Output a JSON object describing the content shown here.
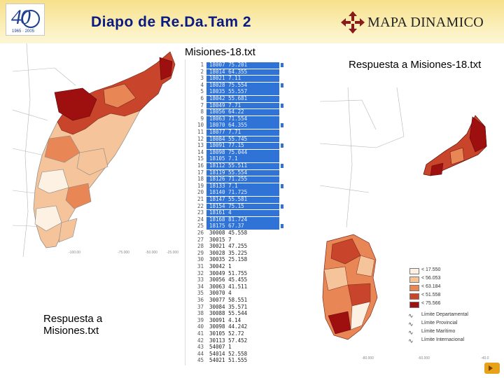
{
  "header": {
    "title": "Diapo de Re.Da.Tam 2",
    "logo_left": {
      "number": "40",
      "icon": "anniversary-logo"
    },
    "brand": {
      "name": "MAPA DINAMICO",
      "icon": "compass-arrows-icon",
      "color": "#8b1a1a"
    }
  },
  "list_panel": {
    "title": "Misiones-18.txt",
    "rows": [
      {
        "line": "1",
        "value": "18007  75.201",
        "selected": true
      },
      {
        "line": "2",
        "value": "18014  64.355",
        "selected": true
      },
      {
        "line": "3",
        "value": "18021  7.11",
        "selected": true
      },
      {
        "line": "4",
        "value": "18028  75.554",
        "selected": true
      },
      {
        "line": "5",
        "value": "18035  55.557",
        "selected": true
      },
      {
        "line": "6",
        "value": "18042  55.681",
        "selected": true
      },
      {
        "line": "7",
        "value": "18049  7.71",
        "selected": true
      },
      {
        "line": "8",
        "value": "18056  64.22",
        "selected": true
      },
      {
        "line": "9",
        "value": "18063  71.554",
        "selected": true
      },
      {
        "line": "10",
        "value": "18070  64.355",
        "selected": true
      },
      {
        "line": "11",
        "value": "18077  7.71",
        "selected": true
      },
      {
        "line": "12",
        "value": "18084  55.745",
        "selected": true
      },
      {
        "line": "13",
        "value": "18091  77.15",
        "selected": true
      },
      {
        "line": "14",
        "value": "18098  75.044",
        "selected": true
      },
      {
        "line": "15",
        "value": "18105  7.1",
        "selected": true
      },
      {
        "line": "16",
        "value": "18112  55.511",
        "selected": true
      },
      {
        "line": "17",
        "value": "18119  55.554",
        "selected": true
      },
      {
        "line": "18",
        "value": "18126  71.255",
        "selected": true
      },
      {
        "line": "19",
        "value": "18133  7.1",
        "selected": true
      },
      {
        "line": "20",
        "value": "18140  71.725",
        "selected": true
      },
      {
        "line": "21",
        "value": "18147  55.581",
        "selected": true
      },
      {
        "line": "22",
        "value": "18154  75.15",
        "selected": true
      },
      {
        "line": "23",
        "value": "18161  4",
        "selected": true
      },
      {
        "line": "24",
        "value": "18168  81.724",
        "selected": true
      },
      {
        "line": "25",
        "value": "18175  67.37",
        "selected": true
      },
      {
        "line": "26",
        "value": "30008  45.558",
        "selected": false
      },
      {
        "line": "27",
        "value": "30015  7",
        "selected": false
      },
      {
        "line": "28",
        "value": "30021  47.255",
        "selected": false
      },
      {
        "line": "29",
        "value": "30028  35.225",
        "selected": false
      },
      {
        "line": "30",
        "value": "30035  25.158",
        "selected": false
      },
      {
        "line": "31",
        "value": "30042  1",
        "selected": false
      },
      {
        "line": "32",
        "value": "30049  51.755",
        "selected": false
      },
      {
        "line": "33",
        "value": "30056  45.455",
        "selected": false
      },
      {
        "line": "34",
        "value": "30063  41.511",
        "selected": false
      },
      {
        "line": "35",
        "value": "30070  4",
        "selected": false
      },
      {
        "line": "36",
        "value": "30077  58.551",
        "selected": false
      },
      {
        "line": "37",
        "value": "30084  35.571",
        "selected": false
      },
      {
        "line": "38",
        "value": "30088  55.544",
        "selected": false
      },
      {
        "line": "39",
        "value": "30091  4.14",
        "selected": false
      },
      {
        "line": "40",
        "value": "30098  44.242",
        "selected": false
      },
      {
        "line": "41",
        "value": "30105  52.72",
        "selected": false
      },
      {
        "line": "42",
        "value": "30113  57.452",
        "selected": false
      },
      {
        "line": "43",
        "value": "54007  1",
        "selected": false
      },
      {
        "line": "44",
        "value": "54014  52.558",
        "selected": false
      },
      {
        "line": "45",
        "value": "54021  51.555",
        "selected": false
      }
    ]
  },
  "captions": {
    "right": "Respuesta a Misiones-18.txt",
    "left": "Respuesta a Misiones.txt"
  },
  "legend": {
    "classes": [
      {
        "label": "< 17.550",
        "color": "#fdf1e4"
      },
      {
        "label": "< 56.053",
        "color": "#f6c49a"
      },
      {
        "label": "< 63.184",
        "color": "#e98656"
      },
      {
        "label": "< 51.558",
        "color": "#c8442b"
      },
      {
        "label": "< 75.566",
        "color": "#9e0f10"
      }
    ],
    "lines": [
      {
        "label": "Límite Departamental",
        "icon": "dept-boundary-line-icon"
      },
      {
        "label": "Límite Provincial",
        "icon": "prov-boundary-line-icon"
      },
      {
        "label": "Límite Marítimo",
        "icon": "maritime-boundary-line-icon"
      },
      {
        "label": "Límite Internacional",
        "icon": "intl-boundary-line-icon"
      }
    ]
  },
  "colors": {
    "title": "#0a1a80",
    "selection": "#2f73d6",
    "boundary": "#9c9c9c"
  },
  "axis_ticks_left": [
    "-100.00",
    "-75.000",
    "-50.000",
    "-25.000"
  ],
  "axis_ticks_right": [
    "-80.000",
    "-60.000",
    "-40.0"
  ]
}
